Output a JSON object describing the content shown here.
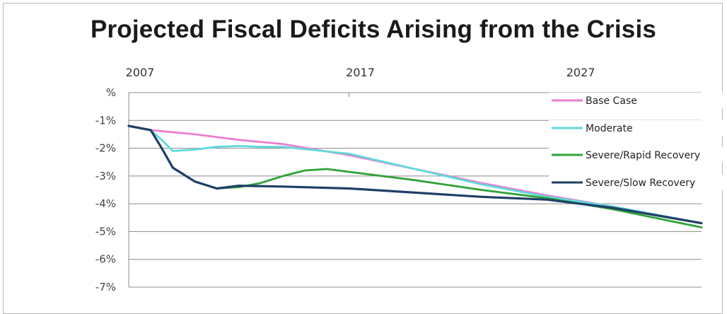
{
  "chart_data": {
    "type": "line",
    "title": "Projected Fiscal Deficits Arising from the Crisis",
    "x_tick_labels": [
      "2007",
      "2017",
      "2027"
    ],
    "x_ticks": [
      2007,
      2017,
      2027
    ],
    "xlim": [
      2007,
      2033
    ],
    "ylim": [
      -7,
      0
    ],
    "y_ticks": [
      0,
      -1,
      -2,
      -3,
      -4,
      -5,
      -6,
      -7
    ],
    "y_tick_labels": [
      "%",
      "-1%",
      "-2%",
      "-3%",
      "-4%",
      "-5%",
      "-6%",
      "-7%"
    ],
    "grid": "horizontal",
    "legend": "right",
    "series": [
      {
        "name": "Base Case",
        "color": "#e87fd0",
        "x": [
          2007,
          2008,
          2010,
          2012,
          2014,
          2017,
          2020,
          2023,
          2026,
          2029,
          2033
        ],
        "y": [
          -1.2,
          -1.35,
          -1.5,
          -1.7,
          -1.85,
          -2.25,
          -2.75,
          -3.25,
          -3.7,
          -4.1,
          -4.7
        ]
      },
      {
        "name": "Moderate",
        "color": "#5fd9d9",
        "x": [
          2007,
          2008,
          2008.5,
          2009,
          2010,
          2011,
          2012,
          2013,
          2014,
          2017,
          2020,
          2023,
          2026,
          2029,
          2033
        ],
        "y": [
          -1.2,
          -1.35,
          -1.7,
          -2.1,
          -2.05,
          -1.95,
          -1.92,
          -1.95,
          -1.95,
          -2.2,
          -2.75,
          -3.3,
          -3.75,
          -4.1,
          -4.7
        ]
      },
      {
        "name": "Severe/Rapid Recovery",
        "color": "#2ea336",
        "x": [
          2007,
          2008,
          2008.5,
          2009,
          2010,
          2011,
          2012,
          2013,
          2014,
          2015,
          2016,
          2017,
          2020,
          2023,
          2026,
          2029,
          2033
        ],
        "y": [
          -1.2,
          -1.35,
          -2.0,
          -2.7,
          -3.2,
          -3.45,
          -3.4,
          -3.25,
          -3.0,
          -2.8,
          -2.75,
          -2.85,
          -3.15,
          -3.5,
          -3.8,
          -4.2,
          -4.85
        ]
      },
      {
        "name": "Severe/Slow Recovery",
        "color": "#1f3f66",
        "x": [
          2007,
          2008,
          2008.5,
          2009,
          2010,
          2011,
          2012,
          2014,
          2017,
          2020,
          2023,
          2026,
          2029,
          2033
        ],
        "y": [
          -1.2,
          -1.35,
          -2.0,
          -2.7,
          -3.2,
          -3.45,
          -3.35,
          -3.38,
          -3.45,
          -3.6,
          -3.75,
          -3.85,
          -4.15,
          -4.7
        ]
      }
    ]
  }
}
